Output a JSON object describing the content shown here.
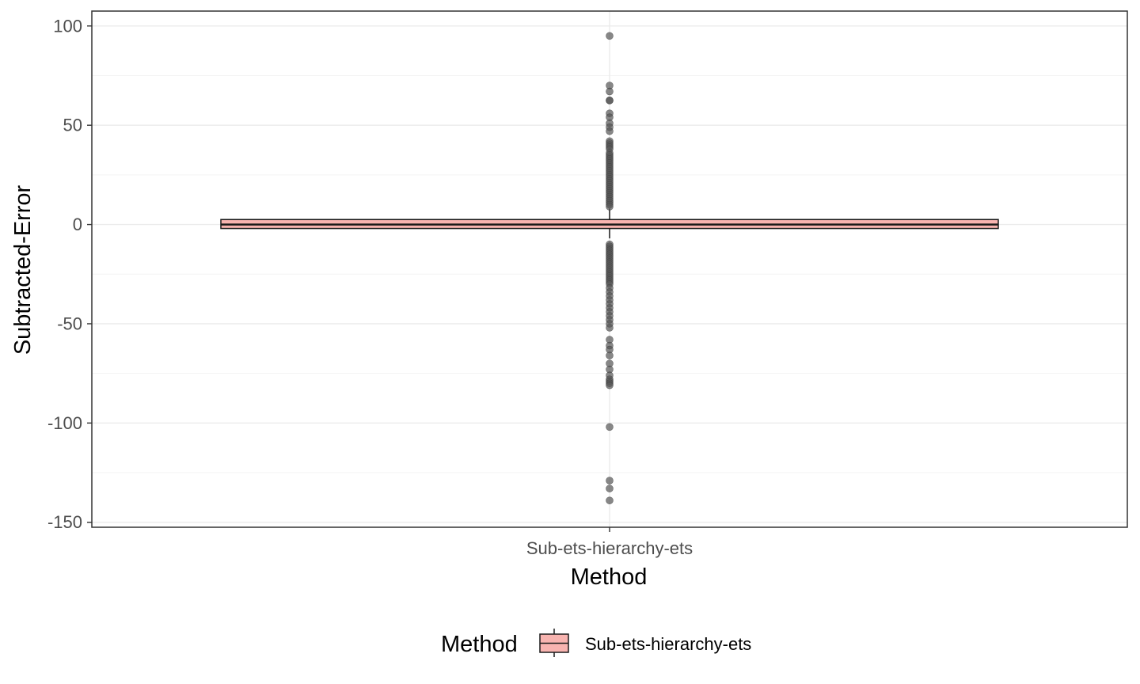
{
  "chart_data": {
    "type": "boxplot",
    "xlabel": "Method",
    "ylabel": "Subtracted-Error",
    "categories": [
      "Sub-ets-hierarchy-ets"
    ],
    "ylim": [
      -150,
      100
    ],
    "yticks": [
      100,
      50,
      0,
      -50,
      -100,
      -150
    ],
    "ytick_labels": [
      "100",
      "50",
      "0",
      "-50",
      "-100",
      "-150"
    ],
    "grid": true,
    "legend": {
      "title": "Method",
      "position": "bottom",
      "entries": [
        "Sub-ets-hierarchy-ets"
      ]
    },
    "colors": {
      "box_fill": "#f8b4b0",
      "box_stroke": "#1a1a1a",
      "outlier": "#555555",
      "grid": "#ebebeb",
      "panel_border": "#333333"
    },
    "series": [
      {
        "category": "Sub-ets-hierarchy-ets",
        "q1": -2.0,
        "median": 0.0,
        "q3": 2.5,
        "whisker_low": -7,
        "whisker_high": 8,
        "outliers": [
          95,
          70,
          67,
          62.5,
          62.5,
          56,
          54,
          51,
          49,
          47,
          42,
          41,
          40,
          39,
          38,
          36,
          35,
          34,
          33,
          32,
          31,
          30,
          29,
          28,
          27,
          26,
          25,
          24,
          23,
          22,
          21,
          20,
          19,
          18,
          17,
          16,
          15,
          14,
          13,
          12,
          11,
          10,
          9,
          -10,
          -11,
          -12,
          -13,
          -14,
          -15,
          -16,
          -17,
          -18,
          -19,
          -20,
          -21,
          -22,
          -23,
          -24,
          -25,
          -26,
          -27,
          -28,
          -29,
          -30,
          -32,
          -34,
          -36,
          -38,
          -40,
          -42,
          -44,
          -46,
          -48,
          -50,
          -52,
          -58,
          -61,
          -63,
          -66,
          -70,
          -73,
          -76,
          -78,
          -79,
          -80,
          -81,
          -102,
          -129,
          -133,
          -139
        ]
      }
    ]
  }
}
